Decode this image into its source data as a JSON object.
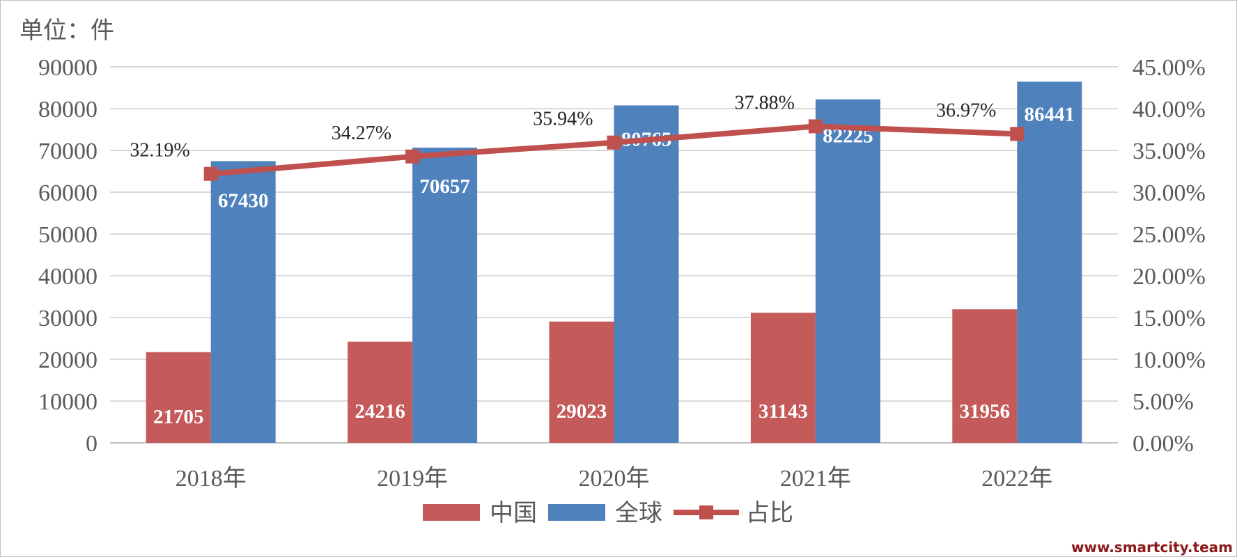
{
  "unit_label": "单位：件",
  "watermark": "www.smartcity.team",
  "chart_data": {
    "type": "bar",
    "categories": [
      "2018年",
      "2019年",
      "2020年",
      "2021年",
      "2022年"
    ],
    "series": [
      {
        "name": "中国",
        "kind": "bar",
        "axis": "left",
        "color": "#c55a5a",
        "values": [
          21705,
          24216,
          29023,
          31143,
          31956
        ],
        "labels": [
          "21705",
          "24216",
          "29023",
          "31143",
          "31956"
        ]
      },
      {
        "name": "全球",
        "kind": "bar",
        "axis": "left",
        "color": "#4f81bd",
        "values": [
          67430,
          70657,
          80765,
          82225,
          86441
        ],
        "labels": [
          "67430",
          "70657",
          "80765",
          "82225",
          "86441"
        ]
      },
      {
        "name": "占比",
        "kind": "line",
        "axis": "right",
        "color": "#c0504d",
        "values": [
          32.19,
          34.27,
          35.94,
          37.88,
          36.97
        ],
        "labels": [
          "32.19%",
          "34.27%",
          "35.94%",
          "37.88%",
          "36.97%"
        ]
      }
    ],
    "left_axis": {
      "ylim": [
        0,
        90000
      ],
      "ticks": [
        "0",
        "10000",
        "20000",
        "30000",
        "40000",
        "50000",
        "60000",
        "70000",
        "80000",
        "90000"
      ]
    },
    "right_axis": {
      "ylim": [
        0,
        45
      ],
      "ticks": [
        "0.00%",
        "5.00%",
        "10.00%",
        "15.00%",
        "20.00%",
        "25.00%",
        "30.00%",
        "35.00%",
        "40.00%",
        "45.00%"
      ]
    },
    "grid": true,
    "legend_position": "bottom-center"
  }
}
